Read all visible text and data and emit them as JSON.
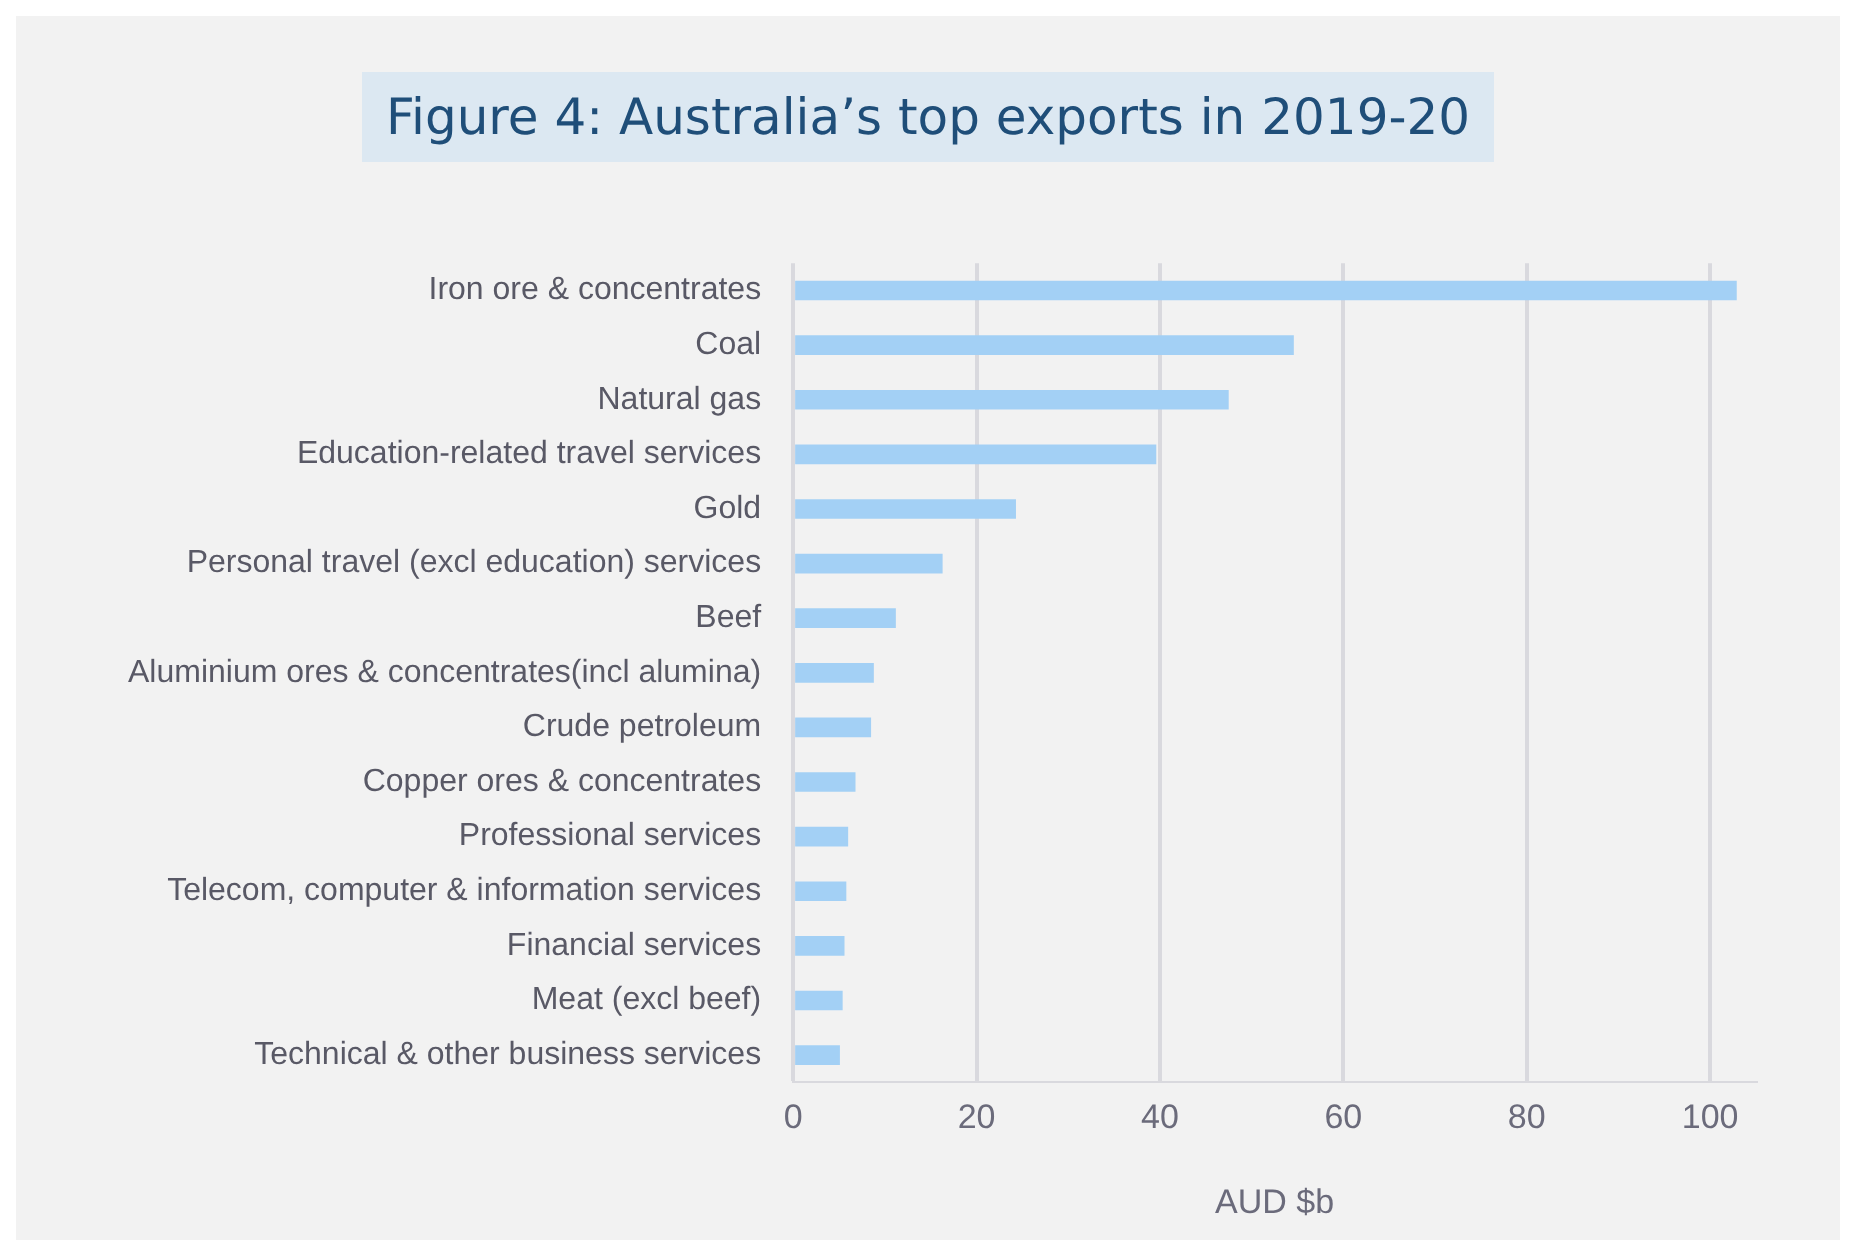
{
  "chart_data": {
    "type": "bar",
    "orientation": "horizontal",
    "title": "Figure 4: Australia’s top exports in 2019-20",
    "xlabel": "AUD $b",
    "categories": [
      "Iron ore & concentrates",
      "Coal",
      "Natural gas",
      "Education-related travel services",
      "Gold",
      "Personal travel (excl education) services",
      "Beef",
      "Aluminium ores & concentrates(incl alumina)",
      "Crude petroleum",
      "Copper ores & concentrates",
      "Professional services",
      "Telecom, computer & information services",
      "Financial services",
      "Meat (excl beef)",
      "Technical & other business services"
    ],
    "values": [
      102.9,
      54.6,
      47.5,
      39.6,
      24.3,
      16.3,
      11.2,
      8.8,
      8.5,
      6.8,
      6.0,
      5.8,
      5.6,
      5.4,
      5.1
    ],
    "color": "#a3d0f5",
    "xlim": [
      0,
      105
    ],
    "xticks": [
      0,
      20,
      40,
      60,
      80,
      100
    ],
    "grid": "x",
    "legend": false
  }
}
